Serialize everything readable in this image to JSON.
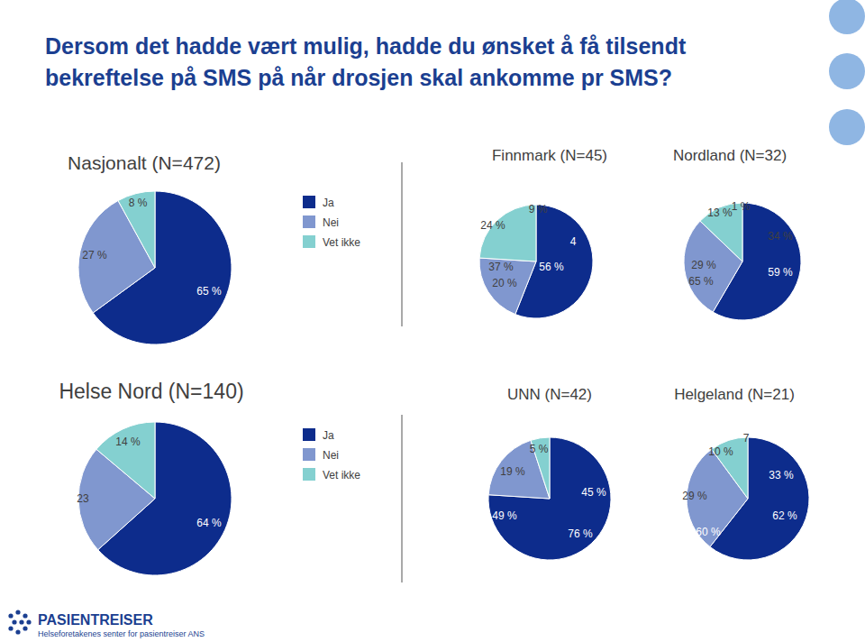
{
  "heading": [
    "Dersom det hadde vært mulig, hadde du ønsket å få tilsendt",
    "bekreftelse på SMS på når drosjen skal ankomme pr SMS?"
  ],
  "footer": {
    "logo": "PASIENTREISER",
    "tagline": "Helseforetakenes senter for pasientreiser ANS"
  },
  "chart_data": [
    {
      "type": "pie",
      "title": "Nasjonalt (N=472)",
      "categories": [
        "Ja",
        "Nei",
        "Vet ikke"
      ],
      "values": [
        65,
        27,
        8
      ],
      "value_labels": [
        "65 %",
        "27 %",
        "8 %"
      ],
      "colors": [
        "#0d2c8c",
        "#8097cf",
        "#84d0d0"
      ],
      "data_labels": true,
      "legend": "right"
    },
    {
      "type": "pie",
      "title": "Finnmark (N=45)",
      "categories": [
        "Ja",
        "Nei",
        "Vet ikke"
      ],
      "values": [
        56,
        20,
        24
      ],
      "value_labels": [
        "56 %",
        "20 %",
        "24 %"
      ],
      "colors": [
        "#0d2c8c",
        "#8097cf",
        "#84d0d0"
      ],
      "data_labels": true,
      "annotations": [
        "9 %",
        "37 %",
        "4"
      ]
    },
    {
      "type": "pie",
      "title": "Nordland (N=32)",
      "categories": [
        "Ja",
        "Nei",
        "Vet ikke"
      ],
      "values": [
        59,
        29,
        13
      ],
      "value_labels": [
        "59 %",
        "29 %",
        "13 %"
      ],
      "colors": [
        "#0d2c8c",
        "#8097cf",
        "#84d0d0"
      ],
      "data_labels": true,
      "annotations": [
        "1 %",
        "34 %",
        "65 %"
      ]
    },
    {
      "type": "pie",
      "title": "Helse Nord (N=140)",
      "categories": [
        "Ja",
        "Nei",
        "Vet ikke"
      ],
      "values": [
        64,
        23,
        14
      ],
      "value_labels": [
        "64 %",
        "23",
        "14 %"
      ],
      "colors": [
        "#0d2c8c",
        "#8097cf",
        "#84d0d0"
      ],
      "data_labels": true,
      "legend": "right"
    },
    {
      "type": "pie",
      "title": "UNN (N=42)",
      "categories": [
        "Ja",
        "Nei",
        "Vet ikke"
      ],
      "values": [
        76,
        19,
        5
      ],
      "value_labels": [
        "76 %",
        "19 %",
        "5 %"
      ],
      "colors": [
        "#0d2c8c",
        "#8097cf",
        "#84d0d0"
      ],
      "data_labels": true,
      "annotations": [
        "45 %",
        "49 %"
      ]
    },
    {
      "type": "pie",
      "title": "Helgeland (N=21)",
      "categories": [
        "Ja",
        "Nei",
        "Vet ikke"
      ],
      "values": [
        60,
        29,
        10
      ],
      "value_labels": [
        "60 %",
        "29 %",
        "10 %"
      ],
      "colors": [
        "#0d2c8c",
        "#8097cf",
        "#84d0d0"
      ],
      "data_labels": true,
      "annotations": [
        "7",
        "33 %",
        "62 %"
      ]
    }
  ]
}
